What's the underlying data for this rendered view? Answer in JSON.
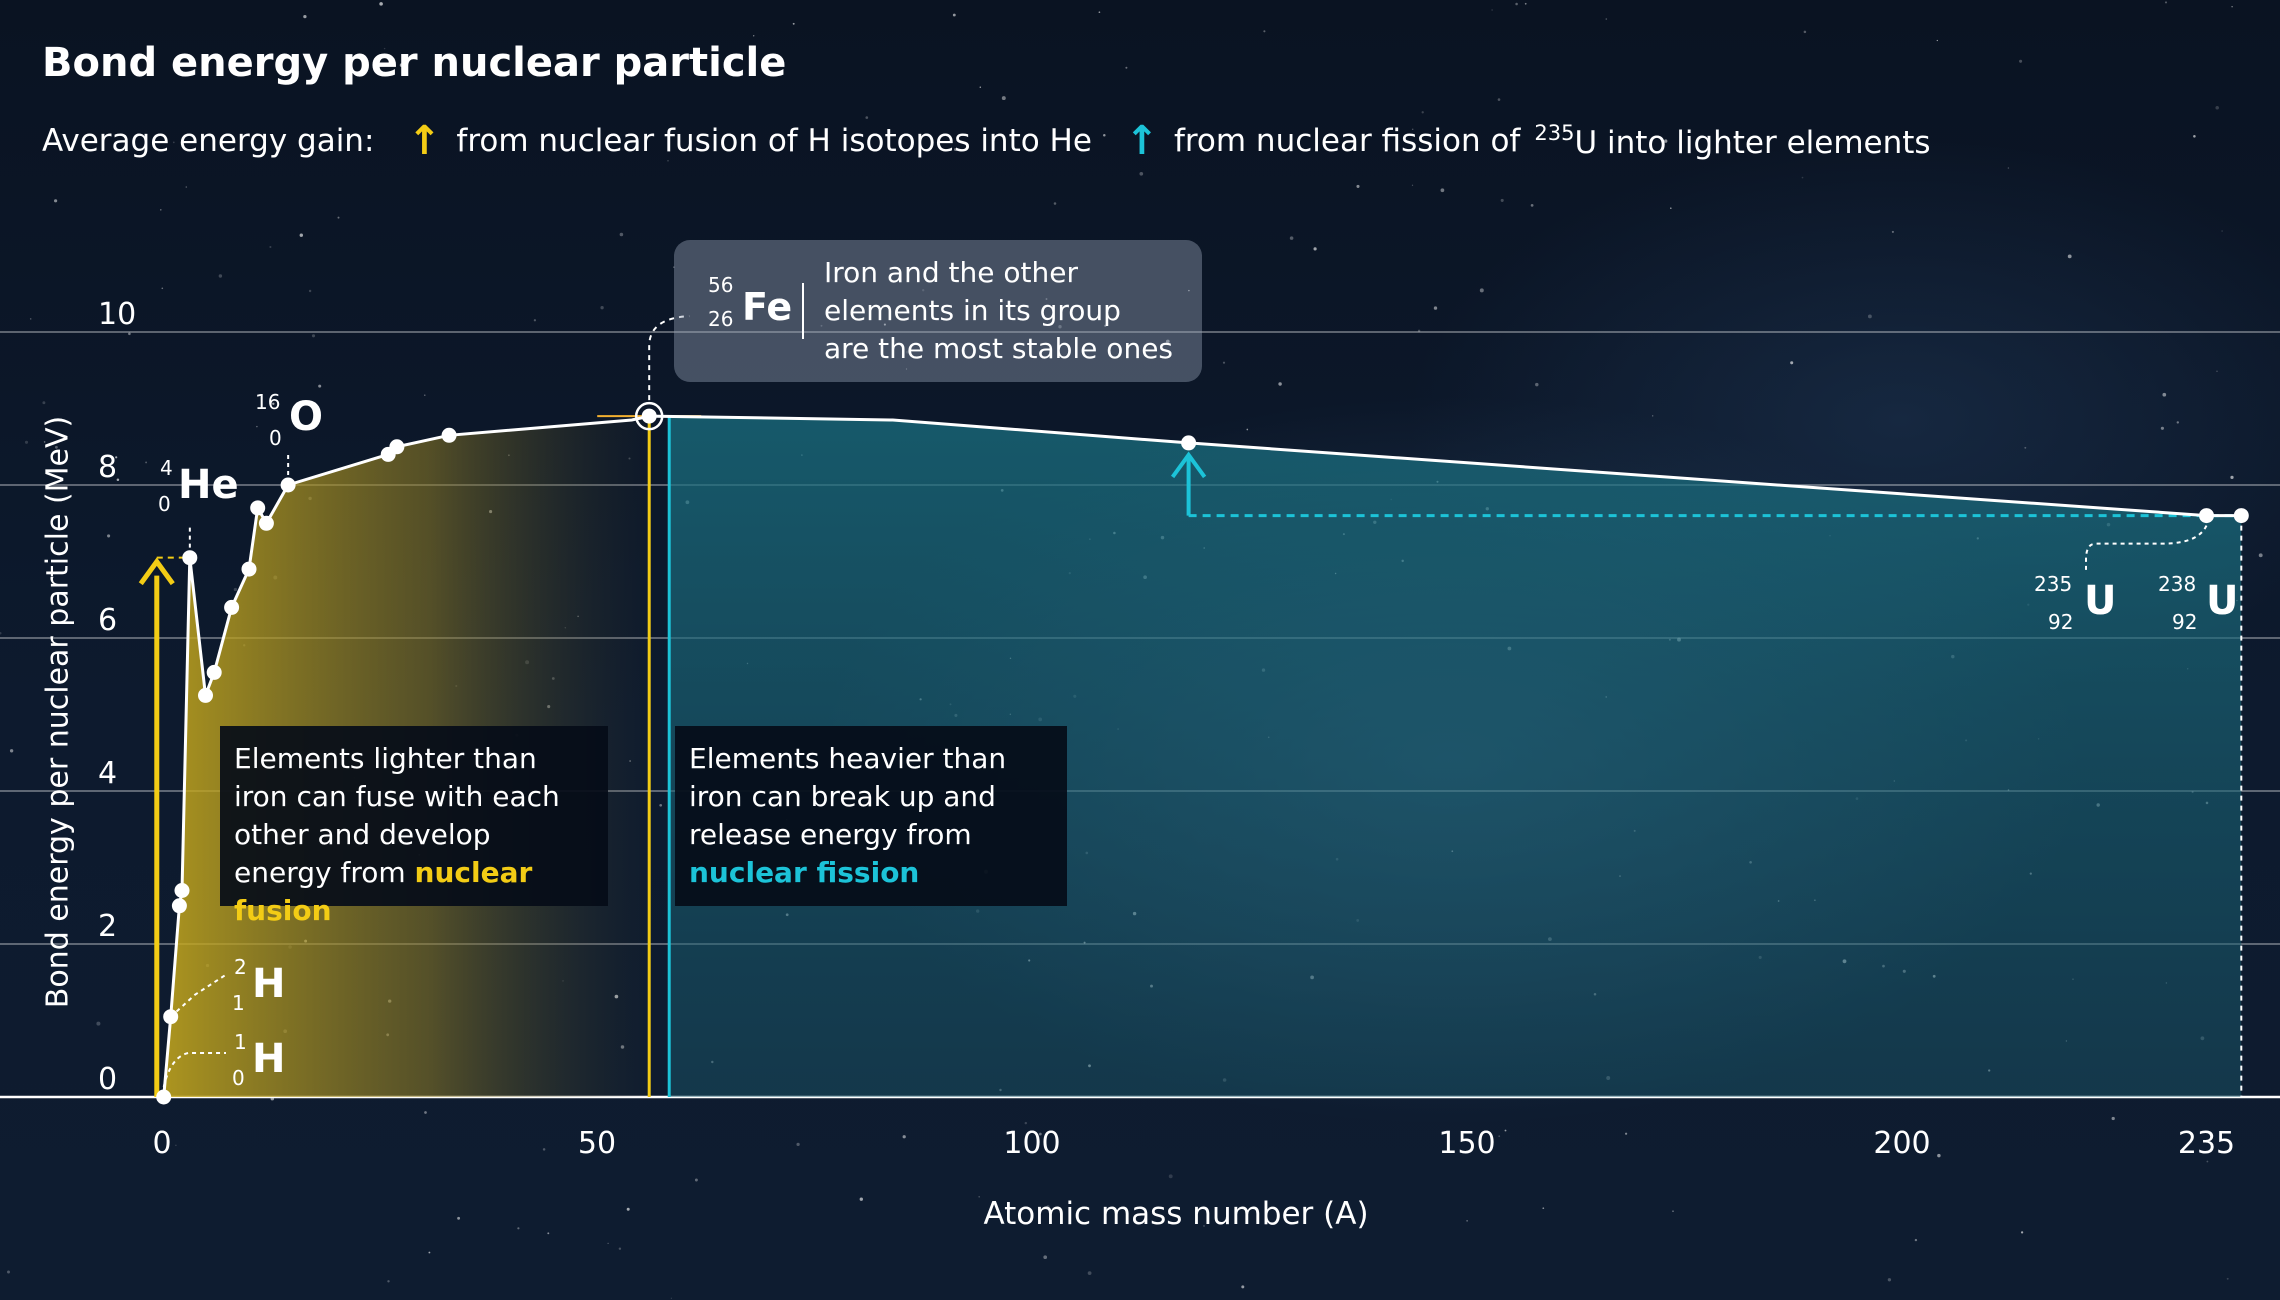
{
  "title": "Bond energy per nuclear particle",
  "legend": {
    "prefix": "Average energy gain:",
    "fusion_label": "from nuclear fusion of H isotopes into He",
    "fission_label_pre": "from nuclear fission of",
    "fission_label_sup": "235",
    "fission_label_post": "U into lighter elements",
    "fusion_icon": "up-arrow-icon",
    "fission_icon": "up-arrow-icon",
    "fusion_color": "#f3cc15",
    "fission_color": "#1cc3d8"
  },
  "infobox": {
    "mass": "56",
    "number": "26",
    "symbol": "Fe",
    "text": "Iron and the other elements in its group are the most stable ones"
  },
  "notes": {
    "fusion_text": "Elements lighter than iron can fuse with each other and develop energy from",
    "fusion_highlight": "nuclear fusion",
    "fission_text": "Elements heavier than iron can break up and release energy from",
    "fission_highlight": "nuclear fission"
  },
  "isotopes": {
    "h1": {
      "mass": "1",
      "number": "0",
      "symbol": "H"
    },
    "h2": {
      "mass": "2",
      "number": "1",
      "symbol": "H"
    },
    "he4": {
      "mass": "4",
      "number": "0",
      "symbol": "He"
    },
    "o16": {
      "mass": "16",
      "number": "0",
      "symbol": "O"
    },
    "u235": {
      "mass": "235",
      "number": "92",
      "symbol": "U"
    },
    "u238": {
      "mass": "238",
      "number": "92",
      "symbol": "U"
    }
  },
  "chart_data": {
    "type": "line",
    "title": "Bond energy per nuclear particle",
    "xlabel": "Atomic mass number (A)",
    "ylabel": "Bond energy per nuclear particle (MeV)",
    "xlim": [
      0,
      243
    ],
    "ylim": [
      0,
      10
    ],
    "x_ticks": [
      0,
      50,
      100,
      150,
      200,
      235
    ],
    "y_ticks": [
      0,
      2,
      4,
      6,
      8,
      10
    ],
    "grid": true,
    "series": [
      {
        "points": [
          {
            "x": 0.2,
            "y": 0
          },
          {
            "x": 1,
            "y": 1.05
          },
          {
            "x": 2,
            "y": 2.5
          },
          {
            "x": 2.3,
            "y": 2.7
          },
          {
            "x": 3.2,
            "y": 7.05
          },
          {
            "x": 5,
            "y": 5.25
          },
          {
            "x": 6,
            "y": 5.55
          },
          {
            "x": 8,
            "y": 6.4
          },
          {
            "x": 10,
            "y": 6.9
          },
          {
            "x": 11,
            "y": 7.7
          },
          {
            "x": 12,
            "y": 7.5
          },
          {
            "x": 14.5,
            "y": 8.0
          },
          {
            "x": 26,
            "y": 8.4
          },
          {
            "x": 27,
            "y": 8.5
          },
          {
            "x": 33,
            "y": 8.65
          },
          {
            "x": 54,
            "y": 8.85
          },
          {
            "x": 56,
            "y": 8.9
          },
          {
            "x": 84,
            "y": 8.85
          },
          {
            "x": 118,
            "y": 8.55
          },
          {
            "x": 235,
            "y": 7.6
          },
          {
            "x": 239,
            "y": 7.6
          }
        ],
        "markers": [
          0.2,
          1,
          2,
          2.3,
          3.2,
          5,
          6,
          8,
          10,
          11,
          12,
          14.5,
          26,
          27,
          33,
          56,
          118,
          235,
          239
        ]
      }
    ],
    "annotations": [
      {
        "type": "fusion-gain",
        "x": 0,
        "from": 0,
        "to": 7.05
      },
      {
        "type": "fission-gain",
        "x": 118,
        "from": 7.6,
        "to": 8.55
      },
      {
        "type": "iron-peak",
        "x": 56,
        "y": 8.9
      }
    ]
  }
}
